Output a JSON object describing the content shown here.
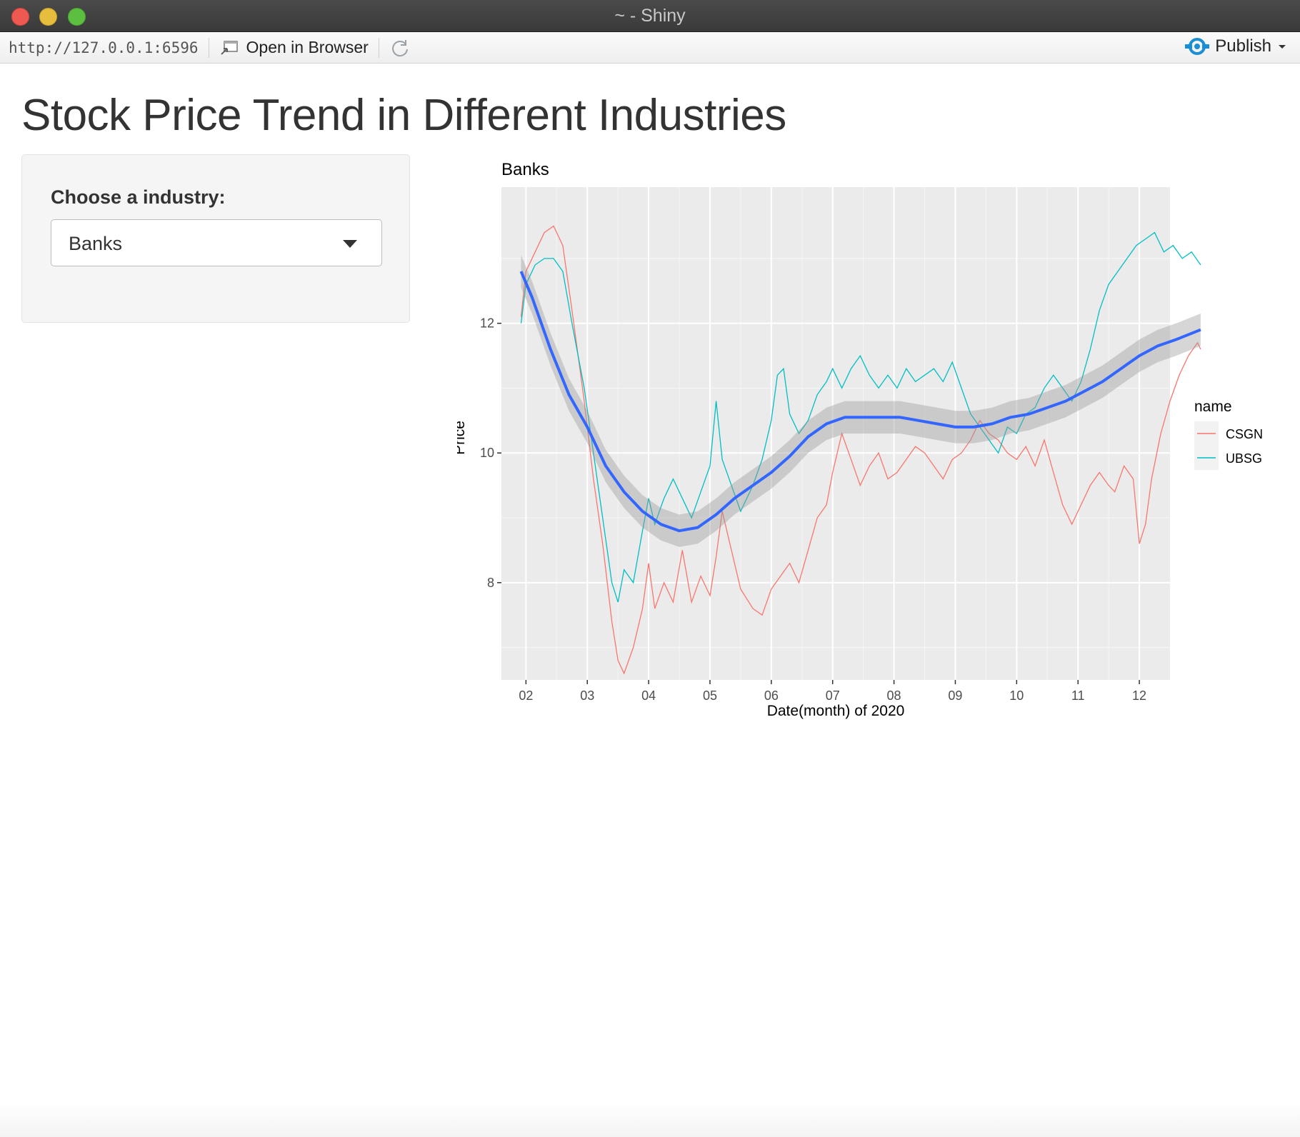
{
  "window": {
    "title": "~ - Shiny"
  },
  "toolbar": {
    "url": "http://127.0.0.1:6596",
    "open_in_browser": "Open in Browser",
    "publish": "Publish"
  },
  "page": {
    "title": "Stock Price Trend in Different Industries"
  },
  "sidebar": {
    "label": "Choose a industry:",
    "selected": "Banks"
  },
  "colors": {
    "CSGN": "#F8766D",
    "UBSG": "#00BFC4",
    "smooth": "#3366FF",
    "panel": "#EBEBEB",
    "accent": "#1a8fd6"
  },
  "chart_data": {
    "type": "line",
    "title": "Banks",
    "xlabel": "Date(month) of 2020",
    "ylabel": "Price",
    "x_ticks": [
      "02",
      "03",
      "04",
      "05",
      "06",
      "07",
      "08",
      "09",
      "10",
      "11",
      "12"
    ],
    "y_ticks": [
      8,
      10,
      12
    ],
    "xlim": [
      0.6,
      11.5
    ],
    "ylim": [
      6.5,
      14.1
    ],
    "grid": true,
    "legend": {
      "title": "name",
      "position": "right"
    },
    "series": [
      {
        "name": "CSGN",
        "points": [
          [
            0.92,
            12.1
          ],
          [
            1.0,
            12.8
          ],
          [
            1.15,
            13.1
          ],
          [
            1.3,
            13.4
          ],
          [
            1.45,
            13.5
          ],
          [
            1.6,
            13.2
          ],
          [
            1.75,
            12.2
          ],
          [
            1.95,
            10.8
          ],
          [
            2.1,
            9.6
          ],
          [
            2.25,
            8.6
          ],
          [
            2.4,
            7.4
          ],
          [
            2.5,
            6.8
          ],
          [
            2.6,
            6.6
          ],
          [
            2.75,
            7.0
          ],
          [
            2.9,
            7.6
          ],
          [
            3.0,
            8.3
          ],
          [
            3.1,
            7.6
          ],
          [
            3.25,
            8.0
          ],
          [
            3.4,
            7.7
          ],
          [
            3.55,
            8.5
          ],
          [
            3.7,
            7.7
          ],
          [
            3.85,
            8.1
          ],
          [
            4.0,
            7.8
          ],
          [
            4.1,
            8.4
          ],
          [
            4.2,
            9.1
          ],
          [
            4.35,
            8.5
          ],
          [
            4.5,
            7.9
          ],
          [
            4.7,
            7.6
          ],
          [
            4.85,
            7.5
          ],
          [
            5.0,
            7.9
          ],
          [
            5.15,
            8.1
          ],
          [
            5.3,
            8.3
          ],
          [
            5.45,
            8.0
          ],
          [
            5.6,
            8.5
          ],
          [
            5.75,
            9.0
          ],
          [
            5.9,
            9.2
          ],
          [
            6.0,
            9.7
          ],
          [
            6.15,
            10.3
          ],
          [
            6.3,
            9.9
          ],
          [
            6.45,
            9.5
          ],
          [
            6.6,
            9.8
          ],
          [
            6.75,
            10.0
          ],
          [
            6.9,
            9.6
          ],
          [
            7.05,
            9.7
          ],
          [
            7.2,
            9.9
          ],
          [
            7.35,
            10.1
          ],
          [
            7.5,
            10.0
          ],
          [
            7.65,
            9.8
          ],
          [
            7.8,
            9.6
          ],
          [
            7.95,
            9.9
          ],
          [
            8.1,
            10.0
          ],
          [
            8.25,
            10.2
          ],
          [
            8.4,
            10.5
          ],
          [
            8.55,
            10.3
          ],
          [
            8.7,
            10.2
          ],
          [
            8.85,
            10.0
          ],
          [
            9.0,
            9.9
          ],
          [
            9.15,
            10.1
          ],
          [
            9.3,
            9.8
          ],
          [
            9.45,
            10.2
          ],
          [
            9.6,
            9.7
          ],
          [
            9.75,
            9.2
          ],
          [
            9.9,
            8.9
          ],
          [
            10.05,
            9.2
          ],
          [
            10.2,
            9.5
          ],
          [
            10.35,
            9.7
          ],
          [
            10.5,
            9.5
          ],
          [
            10.6,
            9.4
          ],
          [
            10.75,
            9.8
          ],
          [
            10.9,
            9.6
          ],
          [
            11.0,
            8.6
          ],
          [
            11.1,
            8.9
          ],
          [
            11.2,
            9.6
          ],
          [
            11.35,
            10.3
          ],
          [
            11.5,
            10.8
          ],
          [
            11.65,
            11.2
          ],
          [
            11.8,
            11.5
          ],
          [
            11.95,
            11.7
          ],
          [
            12.0,
            11.6
          ]
        ]
      },
      {
        "name": "UBSG",
        "points": [
          [
            0.92,
            12.0
          ],
          [
            1.0,
            12.6
          ],
          [
            1.15,
            12.9
          ],
          [
            1.3,
            13.0
          ],
          [
            1.45,
            13.0
          ],
          [
            1.6,
            12.8
          ],
          [
            1.75,
            12.0
          ],
          [
            1.95,
            11.0
          ],
          [
            2.1,
            10.0
          ],
          [
            2.25,
            9.0
          ],
          [
            2.4,
            8.0
          ],
          [
            2.5,
            7.7
          ],
          [
            2.6,
            8.2
          ],
          [
            2.75,
            8.0
          ],
          [
            2.9,
            8.8
          ],
          [
            3.0,
            9.3
          ],
          [
            3.1,
            8.9
          ],
          [
            3.25,
            9.3
          ],
          [
            3.4,
            9.6
          ],
          [
            3.55,
            9.3
          ],
          [
            3.7,
            9.0
          ],
          [
            3.85,
            9.4
          ],
          [
            4.0,
            9.8
          ],
          [
            4.1,
            10.8
          ],
          [
            4.2,
            9.9
          ],
          [
            4.35,
            9.5
          ],
          [
            4.5,
            9.1
          ],
          [
            4.7,
            9.5
          ],
          [
            4.85,
            9.9
          ],
          [
            5.0,
            10.5
          ],
          [
            5.1,
            11.2
          ],
          [
            5.2,
            11.3
          ],
          [
            5.3,
            10.6
          ],
          [
            5.45,
            10.3
          ],
          [
            5.6,
            10.5
          ],
          [
            5.75,
            10.9
          ],
          [
            5.9,
            11.1
          ],
          [
            6.0,
            11.3
          ],
          [
            6.15,
            11.0
          ],
          [
            6.3,
            11.3
          ],
          [
            6.45,
            11.5
          ],
          [
            6.6,
            11.2
          ],
          [
            6.75,
            11.0
          ],
          [
            6.9,
            11.2
          ],
          [
            7.05,
            11.0
          ],
          [
            7.2,
            11.3
          ],
          [
            7.35,
            11.1
          ],
          [
            7.5,
            11.2
          ],
          [
            7.65,
            11.3
          ],
          [
            7.8,
            11.1
          ],
          [
            7.95,
            11.4
          ],
          [
            8.1,
            11.0
          ],
          [
            8.25,
            10.6
          ],
          [
            8.4,
            10.4
          ],
          [
            8.55,
            10.2
          ],
          [
            8.7,
            10.0
          ],
          [
            8.85,
            10.4
          ],
          [
            9.0,
            10.3
          ],
          [
            9.15,
            10.6
          ],
          [
            9.3,
            10.7
          ],
          [
            9.45,
            11.0
          ],
          [
            9.6,
            11.2
          ],
          [
            9.75,
            11.0
          ],
          [
            9.9,
            10.8
          ],
          [
            10.05,
            11.1
          ],
          [
            10.2,
            11.6
          ],
          [
            10.35,
            12.2
          ],
          [
            10.5,
            12.6
          ],
          [
            10.65,
            12.8
          ],
          [
            10.8,
            13.0
          ],
          [
            10.95,
            13.2
          ],
          [
            11.1,
            13.3
          ],
          [
            11.25,
            13.4
          ],
          [
            11.4,
            13.1
          ],
          [
            11.55,
            13.2
          ],
          [
            11.7,
            13.0
          ],
          [
            11.85,
            13.1
          ],
          [
            12.0,
            12.9
          ]
        ]
      }
    ],
    "smooth": {
      "color": "#3366FF",
      "points": [
        [
          0.92,
          12.8
        ],
        [
          1.1,
          12.4
        ],
        [
          1.4,
          11.6
        ],
        [
          1.7,
          10.9
        ],
        [
          2.0,
          10.4
        ],
        [
          2.3,
          9.8
        ],
        [
          2.6,
          9.4
        ],
        [
          2.9,
          9.1
        ],
        [
          3.2,
          8.9
        ],
        [
          3.5,
          8.8
        ],
        [
          3.8,
          8.85
        ],
        [
          4.1,
          9.05
        ],
        [
          4.4,
          9.3
        ],
        [
          4.7,
          9.5
        ],
        [
          5.0,
          9.7
        ],
        [
          5.3,
          9.95
        ],
        [
          5.6,
          10.25
        ],
        [
          5.9,
          10.45
        ],
        [
          6.2,
          10.55
        ],
        [
          6.5,
          10.55
        ],
        [
          6.8,
          10.55
        ],
        [
          7.1,
          10.55
        ],
        [
          7.4,
          10.5
        ],
        [
          7.7,
          10.45
        ],
        [
          8.0,
          10.4
        ],
        [
          8.3,
          10.4
        ],
        [
          8.6,
          10.45
        ],
        [
          8.9,
          10.55
        ],
        [
          9.2,
          10.6
        ],
        [
          9.5,
          10.7
        ],
        [
          9.8,
          10.8
        ],
        [
          10.1,
          10.95
        ],
        [
          10.4,
          11.1
        ],
        [
          10.7,
          11.3
        ],
        [
          11.0,
          11.5
        ],
        [
          11.3,
          11.65
        ],
        [
          11.6,
          11.75
        ],
        [
          12.0,
          11.9
        ]
      ],
      "band": 0.25
    }
  }
}
